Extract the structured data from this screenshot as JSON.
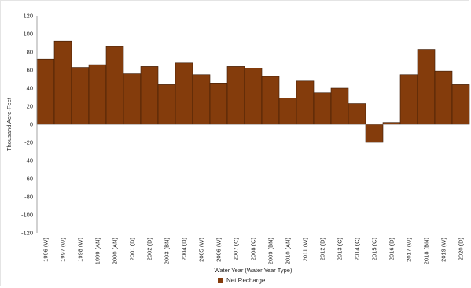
{
  "chart_data": {
    "type": "bar",
    "categories": [
      "1996 (W)",
      "1997 (W)",
      "1998 (W)",
      "1999 (AN)",
      "2000 (AN)",
      "2001 (D)",
      "2002 (D)",
      "2003 (BN)",
      "2004 (D)",
      "2005 (W)",
      "2006 (W)",
      "2007 (C)",
      "2008 (C)",
      "2009 (BN)",
      "2010 (AN)",
      "2011 (W)",
      "2012 (D)",
      "2013 (C)",
      "2014 (C)",
      "2015 (C)",
      "2016 (D)",
      "2017 (W)",
      "2018 (BN)",
      "2019 (W)",
      "2020 (D)"
    ],
    "series": [
      {
        "name": "Net Recharge",
        "values": [
          72,
          92,
          63,
          66,
          86,
          56,
          64,
          44,
          68,
          55,
          45,
          64,
          62,
          53,
          29,
          48,
          35,
          40,
          23,
          -20,
          2,
          55,
          83,
          59,
          44
        ]
      }
    ],
    "xlabel": "Water Year (Water Year Type)",
    "ylabel": "Thousand Acre-Feet",
    "ylim": [
      -120,
      120
    ],
    "yticks": [
      120,
      100,
      80,
      60,
      40,
      20,
      0,
      -20,
      -40,
      -60,
      -80,
      -100,
      -120
    ],
    "bar_color": "#843c0c",
    "bar_edge_color": "#3a1a05",
    "grid": false,
    "legend_position": "bottom"
  }
}
